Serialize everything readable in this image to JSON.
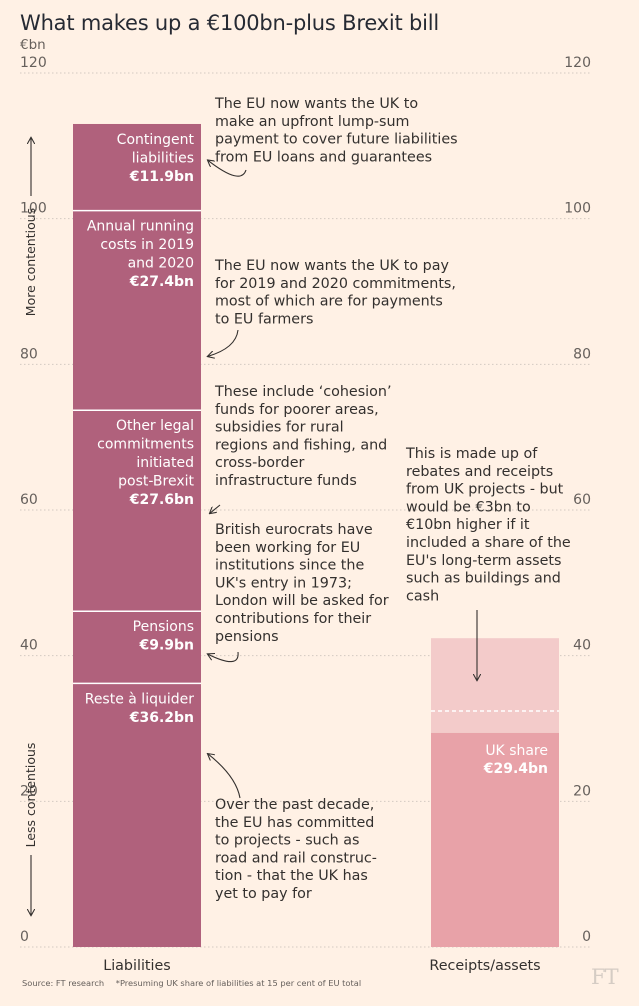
{
  "header": {
    "title": "What makes up a €100bn-plus Brexit bill",
    "unit": "€bn"
  },
  "footer": {
    "source": "Source: FT research",
    "footnote": "*Presuming UK share of liabilities at 15 per cent of EU total",
    "logo": "FT"
  },
  "chart_data": {
    "type": "bar",
    "stacked": true,
    "title": "What makes up a €100bn-plus Brexit bill",
    "ylabel": "€bn",
    "ylim": [
      0,
      120
    ],
    "yticks": [
      0,
      20,
      40,
      60,
      80,
      100,
      120
    ],
    "grid": true,
    "categories": [
      "Liabilities",
      "Receipts/assets"
    ],
    "side_labels": [
      "More contentious",
      "Less contentious"
    ],
    "liabilities": [
      {
        "label": "Reste à liquider",
        "value": 36.2,
        "value_label": "€36.2bn"
      },
      {
        "label": "Pensions",
        "value": 9.9,
        "value_label": "€9.9bn"
      },
      {
        "label": "Other legal commitments initiated post-Brexit",
        "label_lines": [
          "Other legal",
          "commitments",
          "initiated",
          "post-Brexit"
        ],
        "value": 27.6,
        "value_label": "€27.6bn"
      },
      {
        "label": "Annual running costs in 2019 and 2020",
        "label_lines": [
          "Annual running",
          "costs in 2019",
          "and 2020"
        ],
        "value": 27.4,
        "value_label": "€27.4bn"
      },
      {
        "label": "Contingent liabilities",
        "label_lines": [
          "Contingent",
          "liabilities"
        ],
        "value": 11.9,
        "value_label": "€11.9bn"
      }
    ],
    "receipts": [
      {
        "label": "UK share",
        "value": 29.4,
        "value_label": "€29.4bn"
      },
      {
        "label": "Additional share of long-term assets",
        "value": 3.0,
        "dashed_separator": true
      },
      {
        "label": "Additional share of long-term assets (upper range)",
        "value": 10.0
      }
    ],
    "annotations": [
      {
        "target": "Contingent liabilities",
        "lines": [
          "The EU now wants the UK to",
          "make an upfront lump-sum",
          "payment to cover future liabilities",
          "from EU loans and guarantees"
        ]
      },
      {
        "target": "Annual running costs in 2019 and 2020",
        "lines": [
          "The EU now wants the UK to pay",
          "for 2019 and 2020 commitments,",
          "most of which are for payments",
          "to EU farmers"
        ]
      },
      {
        "target": "Other legal commitments initiated post-Brexit",
        "lines": [
          "These include ‘cohesion’",
          "funds for poorer areas,",
          "subsidies for rural",
          "regions and fishing, and",
          "cross-border",
          "infrastructure funds"
        ]
      },
      {
        "target": "Pensions",
        "lines": [
          "British eurocrats have",
          "been working for EU",
          "institutions since the",
          "UK's entry in 1973;",
          "London will be asked for",
          "contributions for their",
          "pensions"
        ]
      },
      {
        "target": "Reste à liquider",
        "lines": [
          "Over the past decade,",
          "the EU has committed",
          "to projects - such as",
          "road and rail construc-",
          "tion - that the UK has",
          "yet to pay for"
        ]
      },
      {
        "target": "Receipts/assets",
        "lines": [
          "This is made up of",
          "rebates and receipts",
          "from UK projects - but",
          "would be €3bn to",
          "€10bn higher if it",
          "included a share of the",
          "EU's long-term assets",
          "such as buildings and",
          "cash"
        ]
      }
    ],
    "colors": {
      "background": "#FFF1E5",
      "liabilities": "#B0617C",
      "uk_share": "#E8A2A8",
      "upper_range": "#F3CBCA",
      "segment_divider": "#FFFFFF",
      "gridline": "#D3C9C1",
      "text": "#33302E",
      "tick": "#66605C"
    }
  }
}
